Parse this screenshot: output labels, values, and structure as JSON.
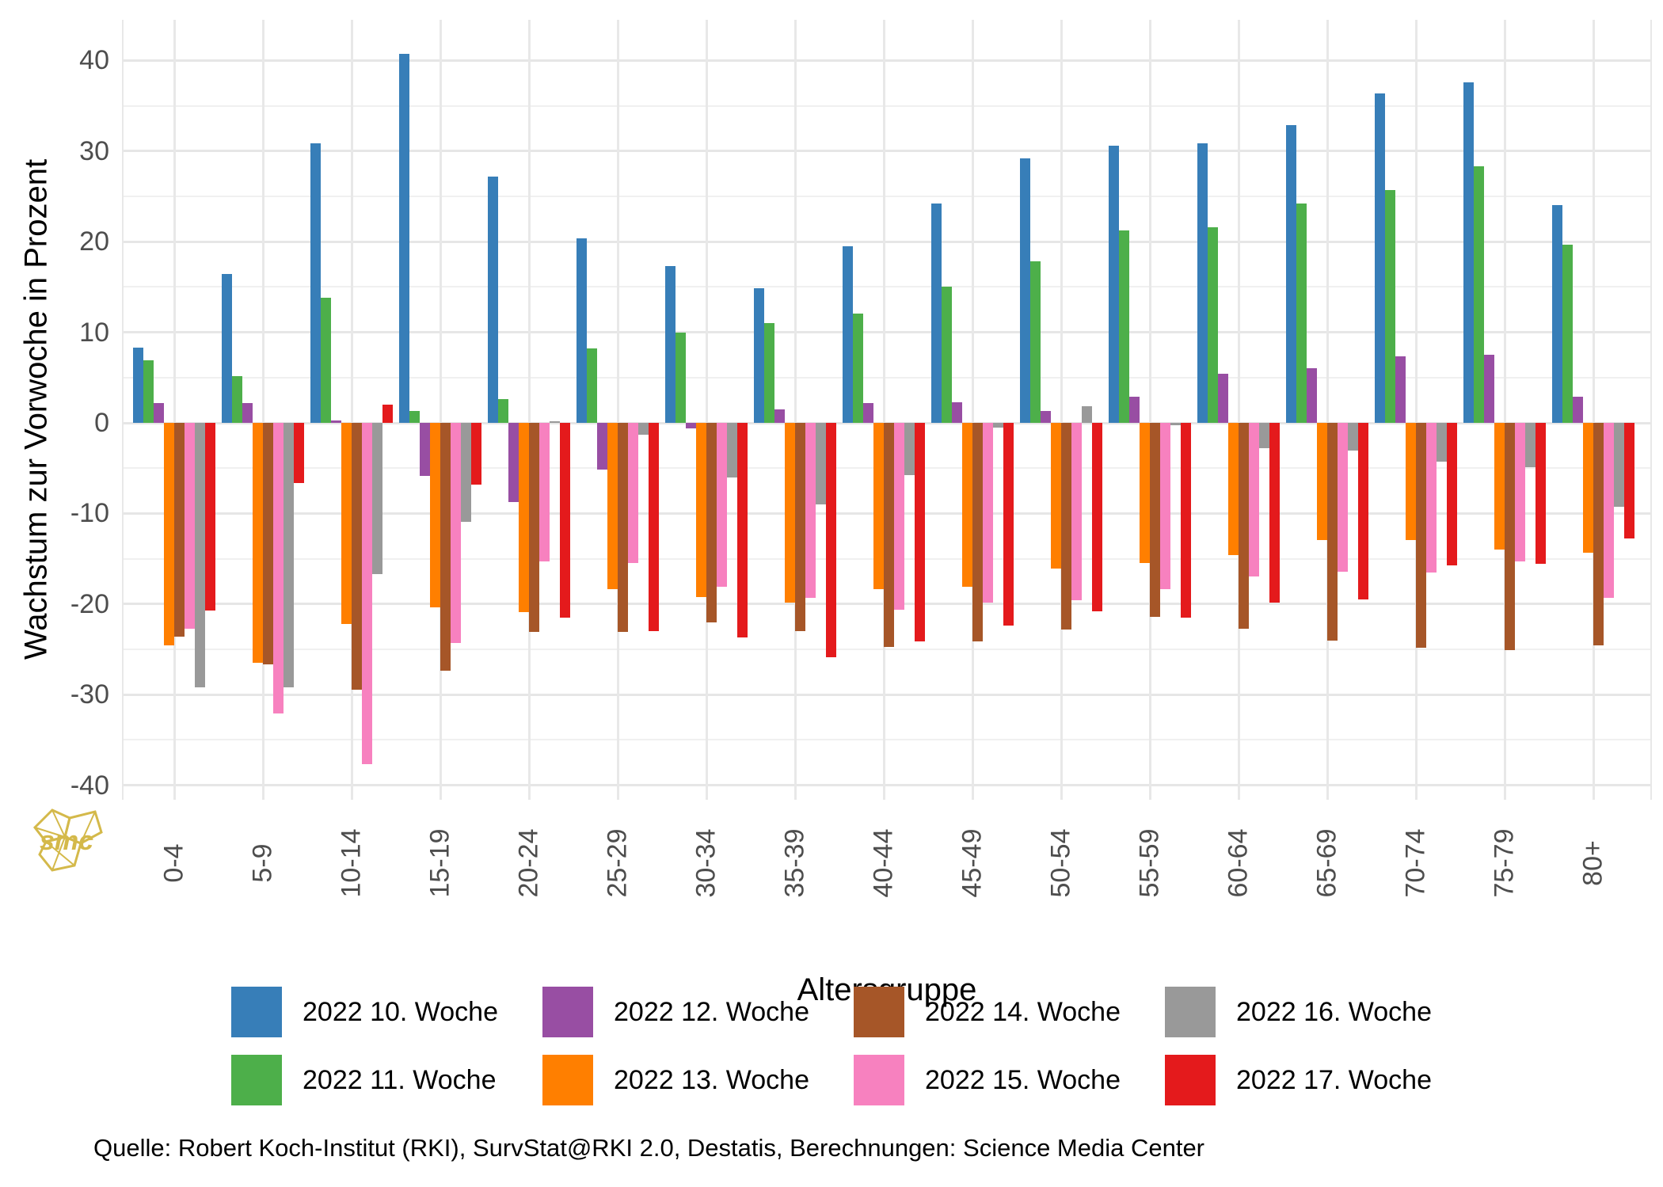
{
  "chart_data": {
    "type": "bar",
    "title": "",
    "xlabel": "Altersgruppe",
    "ylabel": "Wachstum zur Vorwoche in Prozent",
    "ylim": [
      -40,
      40
    ],
    "ytick_step": 10,
    "yticks": [
      40,
      30,
      20,
      10,
      0,
      -10,
      -20,
      -30,
      -40
    ],
    "grid": "on",
    "legend_position": "bottom-center",
    "categories": [
      "0-4",
      "5-9",
      "10-14",
      "15-19",
      "20-24",
      "25-29",
      "30-34",
      "35-39",
      "40-44",
      "45-49",
      "50-54",
      "55-59",
      "60-64",
      "65-69",
      "70-74",
      "75-79",
      "80+"
    ],
    "series": [
      {
        "name": "2022 10. Woche",
        "color": "#377eb8",
        "values": [
          8.3,
          16.4,
          30.9,
          40.7,
          27.2,
          20.4,
          17.3,
          14.9,
          19.5,
          24.2,
          29.2,
          30.6,
          30.9,
          32.9,
          36.4,
          37.6,
          24.0
        ]
      },
      {
        "name": "2022 11. Woche",
        "color": "#4daf4a",
        "values": [
          6.9,
          5.2,
          13.8,
          1.3,
          2.6,
          8.2,
          10.0,
          11.0,
          12.1,
          15.0,
          17.8,
          21.2,
          21.6,
          24.2,
          25.7,
          28.3,
          19.7
        ]
      },
      {
        "name": "2022 12. Woche",
        "color": "#984ea3",
        "values": [
          2.2,
          2.2,
          0.3,
          -5.9,
          -8.7,
          -5.2,
          -0.6,
          1.5,
          2.2,
          2.3,
          1.3,
          2.9,
          5.4,
          6.0,
          7.3,
          7.5,
          2.9
        ]
      },
      {
        "name": "2022 13. Woche",
        "color": "#ff7f00",
        "values": [
          -24.6,
          -26.5,
          -22.2,
          -20.4,
          -20.9,
          -18.4,
          -19.2,
          -19.8,
          -18.4,
          -18.1,
          -16.1,
          -15.5,
          -14.6,
          -12.9,
          -12.9,
          -14.0,
          -14.3
        ]
      },
      {
        "name": "2022 14. Woche",
        "color": "#a65628",
        "values": [
          -23.6,
          -26.7,
          -29.5,
          -27.4,
          -23.1,
          -23.1,
          -22.0,
          -23.0,
          -24.7,
          -24.1,
          -22.8,
          -21.4,
          -22.7,
          -24.0,
          -24.8,
          -25.1,
          -24.6
        ]
      },
      {
        "name": "2022 15. Woche",
        "color": "#f781bf",
        "values": [
          -22.7,
          -32.1,
          -37.7,
          -24.3,
          -15.3,
          -15.5,
          -18.1,
          -19.3,
          -20.6,
          -19.8,
          -19.6,
          -18.4,
          -17.0,
          -16.4,
          -16.5,
          -15.3,
          -19.3
        ]
      },
      {
        "name": "2022 16. Woche",
        "color": "#999999",
        "values": [
          -29.2,
          -29.2,
          -16.7,
          -10.9,
          0.2,
          -1.3,
          -6.0,
          -9.0,
          -5.8,
          -0.5,
          1.8,
          -0.3,
          -2.8,
          -3.1,
          -4.3,
          -4.9,
          -9.3
        ]
      },
      {
        "name": "2022 17. Woche",
        "color": "#e41a1c",
        "values": [
          -20.7,
          -6.6,
          2.0,
          -6.8,
          -21.5,
          -23.0,
          -23.7,
          -25.9,
          -24.1,
          -22.4,
          -20.8,
          -21.5,
          -19.8,
          -19.5,
          -15.7,
          -15.6,
          -12.8
        ]
      }
    ]
  },
  "footer": {
    "text": "Quelle: Robert Koch-Institut (RKI), SurvStat@RKI 2.0, Destatis, Berechnungen: Science Media Center"
  },
  "watermark": {
    "text": "smc",
    "color": "#d4b94a"
  }
}
